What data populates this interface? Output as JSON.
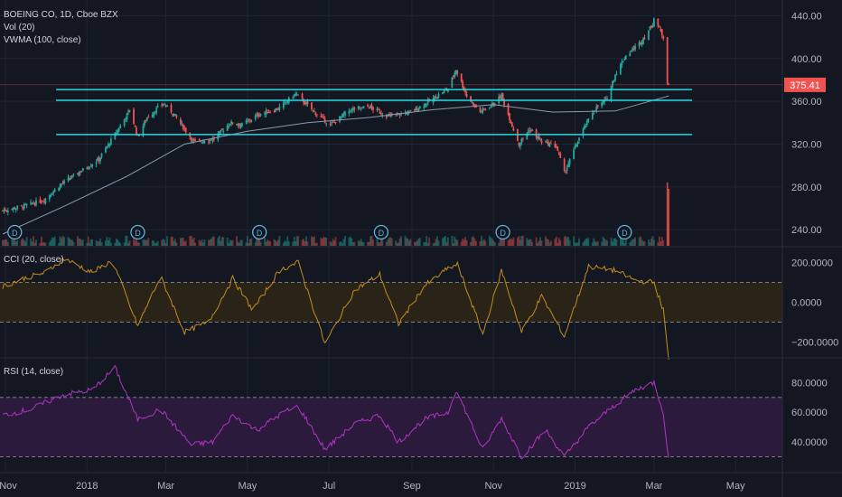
{
  "header": {
    "symbol_line": "BOEING CO, 1D, Cboe BZX",
    "vol_label": "Vol (20)",
    "vwma_label": "VWMA (100, close)"
  },
  "price_badge": {
    "value": 375.41,
    "label": "375.41",
    "color": "#ef5350"
  },
  "colors": {
    "background": "#131722",
    "grid": "#1f2433",
    "up": "#26a69a",
    "down": "#ef5350",
    "levels": "#26d7e0",
    "vwma": "#8a9bb0",
    "cci": "#c58b1c",
    "cci_band": "#2a2418",
    "rsi": "#b035c4",
    "rsi_band": "#2b1a3c",
    "axis_text": "#b2b5be"
  },
  "dividend_markers": {
    "icon": "dividend-badge-icon",
    "label": "D",
    "dates": [
      "2017-11-08",
      "2018-02-08",
      "2018-05-10",
      "2018-08-09",
      "2018-11-08",
      "2019-02-07"
    ]
  },
  "chart_data": [
    {
      "type": "candlestick",
      "name": "price",
      "x_range": [
        "2017-10-28",
        "2019-06-05"
      ],
      "ylim": [
        225,
        453
      ],
      "y_ticks": [
        240,
        280,
        320,
        360,
        400,
        440
      ],
      "y_tick_labels": [
        "240.00",
        "280.00",
        "320.00",
        "360.00",
        "400.00",
        "440.00"
      ],
      "x_ticks": [
        {
          "date": "2017-11-01",
          "label": "Nov"
        },
        {
          "date": "2018-01-01",
          "label": "2018"
        },
        {
          "date": "2018-03-01",
          "label": "Mar"
        },
        {
          "date": "2018-05-01",
          "label": "May"
        },
        {
          "date": "2018-07-01",
          "label": "Jul"
        },
        {
          "date": "2018-09-01",
          "label": "Sep"
        },
        {
          "date": "2018-11-01",
          "label": "Nov"
        },
        {
          "date": "2019-01-01",
          "label": "2019"
        },
        {
          "date": "2019-03-01",
          "label": "Mar"
        },
        {
          "date": "2019-05-01",
          "label": "May"
        }
      ],
      "close_path": [
        [
          "2017-10-30",
          258
        ],
        [
          "2017-11-15",
          262
        ],
        [
          "2017-11-30",
          268
        ],
        [
          "2017-12-12",
          282
        ],
        [
          "2017-12-29",
          296
        ],
        [
          "2018-01-10",
          306
        ],
        [
          "2018-01-24",
          333
        ],
        [
          "2018-02-02",
          352
        ],
        [
          "2018-02-08",
          327
        ],
        [
          "2018-02-15",
          345
        ],
        [
          "2018-02-27",
          358
        ],
        [
          "2018-03-07",
          348
        ],
        [
          "2018-03-22",
          322
        ],
        [
          "2018-04-06",
          325
        ],
        [
          "2018-04-18",
          340
        ],
        [
          "2018-04-27",
          338
        ],
        [
          "2018-05-10",
          348
        ],
        [
          "2018-05-24",
          353
        ],
        [
          "2018-06-06",
          367
        ],
        [
          "2018-06-20",
          350
        ],
        [
          "2018-07-02",
          338
        ],
        [
          "2018-07-17",
          352
        ],
        [
          "2018-07-31",
          355
        ],
        [
          "2018-08-14",
          346
        ],
        [
          "2018-08-31",
          350
        ],
        [
          "2018-09-14",
          360
        ],
        [
          "2018-09-28",
          372
        ],
        [
          "2018-10-04",
          390
        ],
        [
          "2018-10-12",
          365
        ],
        [
          "2018-10-22",
          350
        ],
        [
          "2018-11-01",
          358
        ],
        [
          "2018-11-07",
          365
        ],
        [
          "2018-11-20",
          320
        ],
        [
          "2018-11-28",
          334
        ],
        [
          "2018-12-07",
          322
        ],
        [
          "2018-12-18",
          318
        ],
        [
          "2018-12-24",
          293
        ],
        [
          "2019-01-04",
          326
        ],
        [
          "2019-01-15",
          352
        ],
        [
          "2019-01-24",
          361
        ],
        [
          "2019-01-31",
          385
        ],
        [
          "2019-02-08",
          403
        ],
        [
          "2019-02-19",
          415
        ],
        [
          "2019-02-28",
          432
        ],
        [
          "2019-03-01",
          438
        ],
        [
          "2019-03-08",
          420
        ],
        [
          "2019-03-11",
          378
        ],
        [
          "2019-03-12",
          375
        ]
      ],
      "horizontal_levels": [
        371,
        361,
        329
      ],
      "vwma_100": [
        [
          "2017-10-30",
          236
        ],
        [
          "2017-12-15",
          262
        ],
        [
          "2018-01-31",
          290
        ],
        [
          "2018-03-15",
          320
        ],
        [
          "2018-05-01",
          332
        ],
        [
          "2018-06-15",
          340
        ],
        [
          "2018-08-01",
          345
        ],
        [
          "2018-09-15",
          352
        ],
        [
          "2018-11-01",
          357
        ],
        [
          "2018-12-15",
          350
        ],
        [
          "2019-01-31",
          351
        ],
        [
          "2019-03-12",
          365
        ]
      ],
      "volume": {
        "base_level": 0.1,
        "spikes": [
          {
            "date": "2019-03-11",
            "level": 1.0
          },
          {
            "date": "2019-03-12",
            "level": 0.9
          }
        ]
      }
    },
    {
      "type": "line",
      "name": "CCI (20, close)",
      "label": "CCI (20, close)",
      "ylim": [
        -275,
        275
      ],
      "y_ticks": [
        200,
        0,
        -200
      ],
      "y_tick_labels": [
        "200.0000",
        "0.0000",
        "−200.0000"
      ],
      "bands": [
        100,
        -100
      ],
      "path": [
        [
          "2017-10-30",
          80
        ],
        [
          "2017-11-15",
          120
        ],
        [
          "2017-12-01",
          150
        ],
        [
          "2017-12-15",
          220
        ],
        [
          "2018-01-05",
          150
        ],
        [
          "2018-01-20",
          210
        ],
        [
          "2018-02-08",
          -120
        ],
        [
          "2018-02-25",
          130
        ],
        [
          "2018-03-15",
          -150
        ],
        [
          "2018-04-02",
          -100
        ],
        [
          "2018-04-20",
          120
        ],
        [
          "2018-05-05",
          -40
        ],
        [
          "2018-05-25",
          160
        ],
        [
          "2018-06-08",
          200
        ],
        [
          "2018-06-28",
          -210
        ],
        [
          "2018-07-20",
          60
        ],
        [
          "2018-08-08",
          140
        ],
        [
          "2018-08-22",
          -110
        ],
        [
          "2018-09-10",
          80
        ],
        [
          "2018-09-28",
          170
        ],
        [
          "2018-10-05",
          190
        ],
        [
          "2018-10-24",
          -160
        ],
        [
          "2018-11-07",
          160
        ],
        [
          "2018-11-22",
          -150
        ],
        [
          "2018-12-07",
          30
        ],
        [
          "2018-12-24",
          -170
        ],
        [
          "2019-01-11",
          180
        ],
        [
          "2019-01-31",
          160
        ],
        [
          "2019-02-15",
          110
        ],
        [
          "2019-03-01",
          100
        ],
        [
          "2019-03-08",
          -40
        ],
        [
          "2019-03-12",
          -290
        ]
      ]
    },
    {
      "type": "line",
      "name": "RSI (14, close)",
      "label": "RSI (14, close)",
      "ylim": [
        20,
        96
      ],
      "y_ticks": [
        80,
        60,
        40
      ],
      "y_tick_labels": [
        "80.0000",
        "60.0000",
        "40.0000"
      ],
      "bands": [
        70,
        30
      ],
      "path": [
        [
          "2017-10-30",
          58
        ],
        [
          "2017-11-20",
          62
        ],
        [
          "2017-12-15",
          72
        ],
        [
          "2018-01-05",
          75
        ],
        [
          "2018-01-22",
          90
        ],
        [
          "2018-02-08",
          55
        ],
        [
          "2018-02-25",
          62
        ],
        [
          "2018-03-20",
          38
        ],
        [
          "2018-04-05",
          40
        ],
        [
          "2018-04-20",
          58
        ],
        [
          "2018-05-08",
          48
        ],
        [
          "2018-05-28",
          60
        ],
        [
          "2018-06-08",
          64
        ],
        [
          "2018-06-28",
          35
        ],
        [
          "2018-07-20",
          52
        ],
        [
          "2018-08-08",
          58
        ],
        [
          "2018-08-22",
          40
        ],
        [
          "2018-09-10",
          55
        ],
        [
          "2018-09-28",
          60
        ],
        [
          "2018-10-04",
          75
        ],
        [
          "2018-10-24",
          35
        ],
        [
          "2018-11-07",
          56
        ],
        [
          "2018-11-22",
          30
        ],
        [
          "2018-12-10",
          48
        ],
        [
          "2018-12-24",
          30
        ],
        [
          "2019-01-11",
          50
        ],
        [
          "2019-01-31",
          65
        ],
        [
          "2019-02-15",
          75
        ],
        [
          "2019-03-01",
          80
        ],
        [
          "2019-03-08",
          60
        ],
        [
          "2019-03-12",
          28
        ]
      ]
    }
  ]
}
